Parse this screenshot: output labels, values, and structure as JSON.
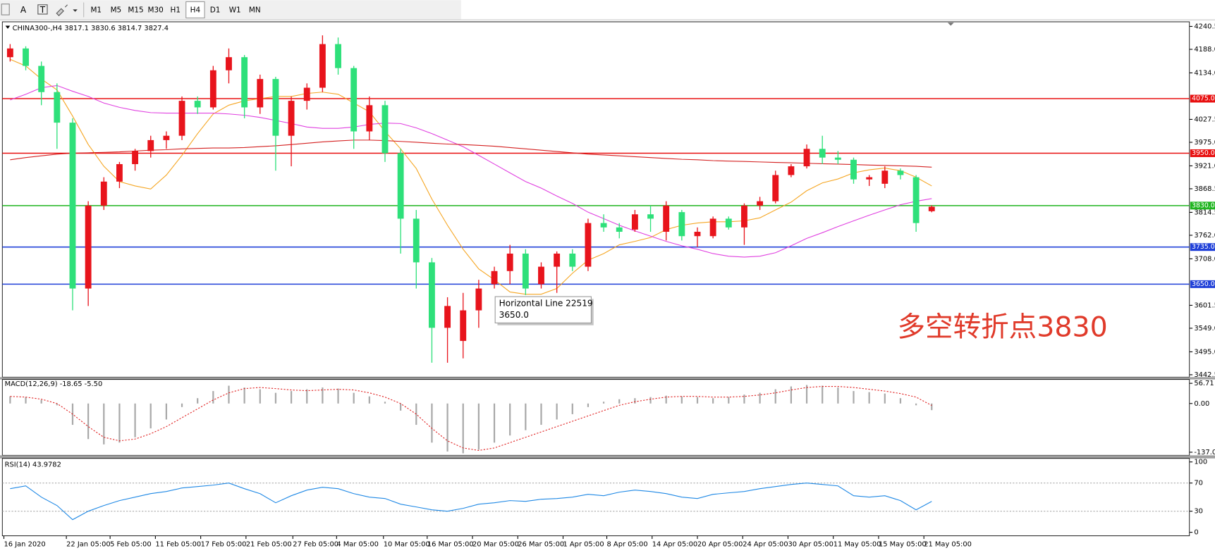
{
  "toolbar": {
    "tools": [
      "A",
      "T"
    ],
    "periods": [
      "M1",
      "M5",
      "M15",
      "M30",
      "H1",
      "H4",
      "D1",
      "W1",
      "MN"
    ],
    "active": "H4"
  },
  "chart_data": [
    {
      "type": "candlestick",
      "label": "CHINA300-,H4  3817.1 3830.6 3814.7 3827.4",
      "annotation": "多空转折点3830",
      "colors": {
        "up": "#e8141c",
        "down": "#2ee07a"
      },
      "xlim": [
        0,
        76
      ],
      "xticks": [
        {
          "value": 0.1,
          "label": "16 Jan 2020"
        },
        {
          "value": 4.1,
          "label": "22 Jan 05:00"
        },
        {
          "value": 6.9,
          "label": "5 Feb 05:00"
        },
        {
          "value": 9.8,
          "label": "11 Feb 05:00"
        },
        {
          "value": 12.7,
          "label": "17 Feb 05:00"
        },
        {
          "value": 15.6,
          "label": "21 Feb 05:00"
        },
        {
          "value": 18.6,
          "label": "27 Feb 05:00"
        },
        {
          "value": 21.4,
          "label": "4 Mar 05:00"
        },
        {
          "value": 24.4,
          "label": "10 Mar 05:00"
        },
        {
          "value": 27.2,
          "label": "16 Mar 05:00"
        },
        {
          "value": 30.1,
          "label": "20 Mar 05:00"
        },
        {
          "value": 33,
          "label": "26 Mar 05:00"
        },
        {
          "value": 35.9,
          "label": "1 Apr 05:00"
        },
        {
          "value": 38.7,
          "label": "8 Apr 05:00"
        },
        {
          "value": 41.6,
          "label": "14 Apr 05:00"
        },
        {
          "value": 44.5,
          "label": "20 Apr 05:00"
        },
        {
          "value": 47.4,
          "label": "24 Apr 05:00"
        },
        {
          "value": 50.3,
          "label": "30 Apr 05:00"
        },
        {
          "value": 53.2,
          "label": "11 May 05:00"
        },
        {
          "value": 56.1,
          "label": "15 May 05:00"
        },
        {
          "value": 59,
          "label": "21 May 05:00"
        }
      ],
      "ylim": [
        3437,
        4251
      ],
      "yticks": [
        4240.5,
        {
          "value": 4188,
          "label": "4188.0"
        },
        {
          "value": 4134,
          "label": "4134.0"
        },
        4027.5,
        {
          "value": 3975,
          "label": "3975.0"
        },
        {
          "value": 3921,
          "label": "3921.0"
        },
        3868.5,
        3814.5,
        {
          "value": 3762,
          "label": "3762.0"
        },
        {
          "value": 3708,
          "label": "3708.0"
        },
        3601.5,
        {
          "value": 3549,
          "label": "3549.0"
        },
        {
          "value": 3495,
          "label": "3495.0"
        },
        3442.5
      ],
      "levels": [
        {
          "value": 4075,
          "label": "4075.0",
          "color": "#e81010"
        },
        {
          "value": 3950,
          "label": "3950.0",
          "color": "#e81010"
        },
        {
          "value": 3830,
          "label": "3830.0",
          "color": "#1fb51f"
        },
        {
          "value": 3735,
          "label": "3735.0",
          "color": "#2040d8"
        },
        {
          "value": 3650,
          "label": "3650.0",
          "color": "#2040d8"
        }
      ],
      "tooltip": {
        "title": "Horizontal Line 22519",
        "value": "3650.0"
      },
      "candles": [
        [
          4170,
          4200,
          4160,
          4190
        ],
        [
          4190,
          4195,
          4140,
          4150
        ],
        [
          4150,
          4160,
          4060,
          4090
        ],
        [
          4090,
          4110,
          3960,
          4020
        ],
        [
          4020,
          4030,
          3590,
          3640
        ],
        [
          3640,
          3840,
          3600,
          3830
        ],
        [
          3830,
          3895,
          3820,
          3885
        ],
        [
          3885,
          3930,
          3870,
          3925
        ],
        [
          3925,
          3960,
          3910,
          3955
        ],
        [
          3955,
          3990,
          3940,
          3980
        ],
        [
          3980,
          4000,
          3960,
          3990
        ],
        [
          3990,
          4080,
          3980,
          4070
        ],
        [
          4070,
          4080,
          4040,
          4055
        ],
        [
          4055,
          4150,
          4050,
          4140
        ],
        [
          4140,
          4190,
          4110,
          4170
        ],
        [
          4170,
          4175,
          4030,
          4055
        ],
        [
          4055,
          4130,
          4040,
          4120
        ],
        [
          4120,
          4125,
          3910,
          3990
        ],
        [
          3990,
          4080,
          3920,
          4070
        ],
        [
          4070,
          4110,
          4050,
          4100
        ],
        [
          4100,
          4220,
          4090,
          4200
        ],
        [
          4200,
          4215,
          4130,
          4145
        ],
        [
          4145,
          4150,
          3960,
          4000
        ],
        [
          4000,
          4080,
          3980,
          4060
        ],
        [
          4060,
          4070,
          3930,
          3950
        ],
        [
          3950,
          3960,
          3720,
          3800
        ],
        [
          3800,
          3820,
          3640,
          3700
        ],
        [
          3700,
          3710,
          3470,
          3550
        ],
        [
          3550,
          3620,
          3470,
          3600
        ],
        [
          3520,
          3630,
          3480,
          3590
        ],
        [
          3590,
          3660,
          3550,
          3640
        ],
        [
          3650,
          3690,
          3640,
          3680
        ],
        [
          3680,
          3740,
          3650,
          3720
        ],
        [
          3720,
          3730,
          3625,
          3640
        ],
        [
          3650,
          3700,
          3640,
          3690
        ],
        [
          3690,
          3725,
          3630,
          3720
        ],
        [
          3720,
          3730,
          3680,
          3690
        ],
        [
          3690,
          3800,
          3680,
          3790
        ],
        [
          3790,
          3810,
          3770,
          3780
        ],
        [
          3780,
          3790,
          3755,
          3770
        ],
        [
          3775,
          3820,
          3770,
          3810
        ],
        [
          3810,
          3830,
          3770,
          3800
        ],
        [
          3770,
          3840,
          3750,
          3830
        ],
        [
          3815,
          3820,
          3750,
          3760
        ],
        [
          3760,
          3780,
          3735,
          3770
        ],
        [
          3760,
          3805,
          3755,
          3800
        ],
        [
          3800,
          3805,
          3775,
          3780
        ],
        [
          3780,
          3835,
          3740,
          3830
        ],
        [
          3830,
          3850,
          3820,
          3840
        ],
        [
          3840,
          3910,
          3835,
          3900
        ],
        [
          3900,
          3925,
          3895,
          3920
        ],
        [
          3920,
          3970,
          3915,
          3960
        ],
        [
          3960,
          3990,
          3925,
          3940
        ],
        [
          3940,
          3955,
          3925,
          3935
        ],
        [
          3935,
          3940,
          3880,
          3890
        ],
        [
          3890,
          3900,
          3875,
          3895
        ],
        [
          3880,
          3920,
          3870,
          3910
        ],
        [
          3910,
          3915,
          3890,
          3900
        ],
        [
          3895,
          3900,
          3770,
          3790
        ],
        [
          3817.1,
          3830.6,
          3814.7,
          3827.4
        ]
      ],
      "series": [
        {
          "color": "#f5a623",
          "values": [
            4165,
            4150,
            4120,
            4095,
            4035,
            3970,
            3920,
            3885,
            3875,
            3868,
            3900,
            3945,
            3995,
            4040,
            4060,
            4070,
            4075,
            4080,
            4080,
            4087,
            4090,
            4085,
            4065,
            4045,
            4000,
            3960,
            3915,
            3845,
            3785,
            3730,
            3685,
            3660,
            3632,
            3627,
            3627,
            3640,
            3675,
            3705,
            3720,
            3740,
            3748,
            3757,
            3775,
            3785,
            3790,
            3793,
            3793,
            3795,
            3802,
            3820,
            3838,
            3864,
            3882,
            3891,
            3905,
            3912,
            3916,
            3910,
            3895,
            3875
          ]
        },
        {
          "color": "#e040e0",
          "values": [
            4072,
            4085,
            4100,
            4105,
            4092,
            4080,
            4065,
            4055,
            4048,
            4043,
            4042,
            4042,
            4042,
            4042,
            4040,
            4037,
            4032,
            4025,
            4018,
            4010,
            4007,
            4007,
            4010,
            4016,
            4019,
            4018,
            4008,
            3995,
            3980,
            3965,
            3945,
            3925,
            3905,
            3885,
            3870,
            3852,
            3835,
            3815,
            3800,
            3785,
            3772,
            3760,
            3748,
            3738,
            3730,
            3720,
            3714,
            3712,
            3714,
            3722,
            3738,
            3755,
            3768,
            3782,
            3795,
            3808,
            3820,
            3832,
            3840,
            3846
          ]
        },
        {
          "color": "#d42020",
          "values": [
            3935,
            3940,
            3944,
            3948,
            3950,
            3951,
            3952,
            3953,
            3955,
            3957,
            3958,
            3960,
            3961,
            3962,
            3962,
            3963,
            3965,
            3967,
            3970,
            3973,
            3976,
            3978,
            3980,
            3980,
            3979,
            3977,
            3975,
            3973,
            3971,
            3970,
            3968,
            3966,
            3963,
            3960,
            3957,
            3954,
            3951,
            3948,
            3946,
            3944,
            3942,
            3940,
            3938,
            3936,
            3935,
            3933,
            3932,
            3931,
            3930,
            3929,
            3928,
            3927,
            3926,
            3925,
            3924,
            3923,
            3922,
            3921,
            3920,
            3918
          ]
        }
      ]
    },
    {
      "type": "macd",
      "label": "MACD(12,26,9) -18.65 -5.50",
      "ylim": [
        -145.7,
        67.6
      ],
      "yticks": [
        56.71,
        {
          "value": 0,
          "label": "0.00"
        },
        -137.01
      ],
      "histogram_color": "#a8a8a8",
      "signal_color": "#e02020",
      "histogram": [
        20,
        18,
        10,
        -5,
        -60,
        -100,
        -115,
        -110,
        -95,
        -70,
        -45,
        -10,
        15,
        35,
        50,
        45,
        40,
        30,
        35,
        40,
        45,
        42,
        30,
        20,
        5,
        -20,
        -60,
        -110,
        -135,
        -140,
        -130,
        -110,
        -90,
        -75,
        -60,
        -45,
        -30,
        -10,
        5,
        12,
        15,
        18,
        22,
        20,
        18,
        15,
        18,
        25,
        30,
        40,
        48,
        52,
        50,
        45,
        35,
        32,
        28,
        15,
        -5,
        -18.65
      ],
      "signal": [
        20,
        18,
        12,
        0,
        -30,
        -65,
        -95,
        -105,
        -100,
        -85,
        -65,
        -40,
        -15,
        10,
        30,
        42,
        45,
        42,
        38,
        36,
        38,
        40,
        38,
        30,
        18,
        0,
        -30,
        -70,
        -105,
        -125,
        -132,
        -125,
        -110,
        -95,
        -80,
        -65,
        -50,
        -35,
        -20,
        -5,
        5,
        12,
        18,
        20,
        20,
        18,
        18,
        20,
        24,
        30,
        38,
        45,
        48,
        48,
        45,
        40,
        35,
        28,
        18,
        -5.5
      ]
    },
    {
      "type": "line",
      "label": "RSI(14) 43.9782",
      "ylim": [
        -5,
        105
      ],
      "yticks": [
        100,
        70,
        30,
        0
      ],
      "levels": [
        70,
        30
      ],
      "color": "#1e88e5",
      "values": [
        62,
        66,
        50,
        38,
        18,
        30,
        38,
        45,
        50,
        55,
        58,
        63,
        65,
        67,
        70,
        62,
        55,
        42,
        52,
        60,
        64,
        62,
        55,
        50,
        48,
        40,
        36,
        32,
        30,
        34,
        40,
        42,
        45,
        44,
        47,
        48,
        50,
        54,
        52,
        57,
        60,
        58,
        55,
        50,
        48,
        54,
        56,
        58,
        62,
        65,
        68,
        70,
        68,
        66,
        52,
        50,
        52,
        45,
        32,
        43.9782
      ]
    }
  ]
}
